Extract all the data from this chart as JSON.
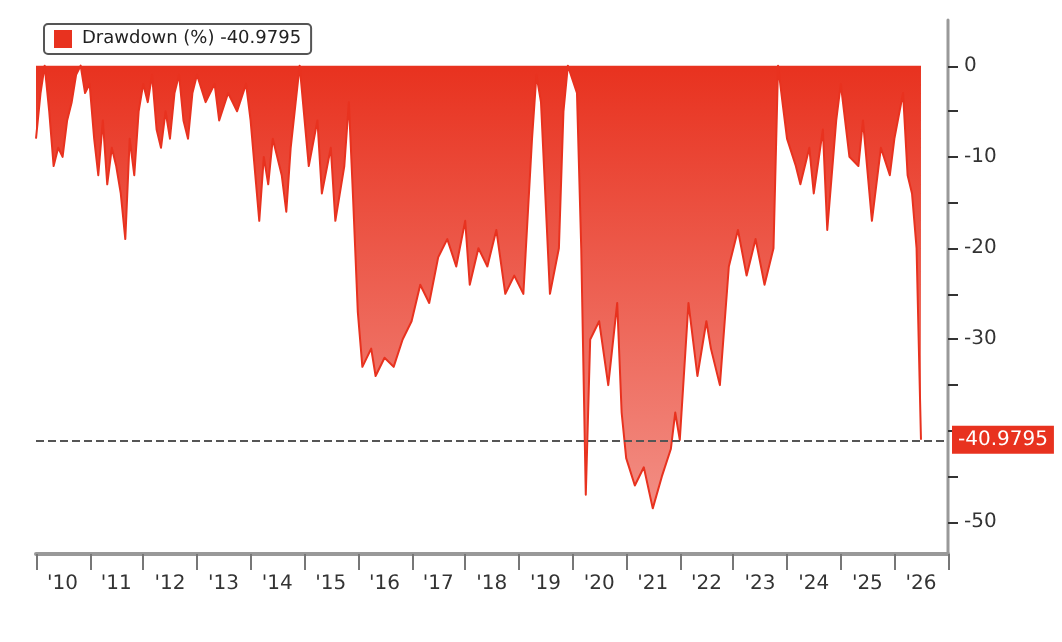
{
  "chart_data": {
    "type": "area",
    "x": [
      "2010-01",
      "2010-02",
      "2010-03",
      "2010-04",
      "2010-05",
      "2010-06",
      "2010-07",
      "2010-08",
      "2010-09",
      "2010-10",
      "2010-11",
      "2010-12",
      "2011-01",
      "2011-02",
      "2011-03",
      "2011-04",
      "2011-05",
      "2011-06",
      "2011-07",
      "2011-08",
      "2011-09",
      "2011-10",
      "2011-11",
      "2011-12",
      "2012-01",
      "2012-02",
      "2012-03",
      "2012-04",
      "2012-05",
      "2012-06",
      "2012-07",
      "2012-08",
      "2012-09",
      "2012-10",
      "2012-11",
      "2012-12",
      "2013-01",
      "2013-03",
      "2013-05",
      "2013-06",
      "2013-08",
      "2013-10",
      "2013-12",
      "2014-01",
      "2014-03",
      "2014-04",
      "2014-05",
      "2014-06",
      "2014-08",
      "2014-09",
      "2014-10",
      "2014-12",
      "2015-02",
      "2015-04",
      "2015-05",
      "2015-07",
      "2015-08",
      "2015-10",
      "2015-11",
      "2015-12",
      "2016-01",
      "2016-02",
      "2016-04",
      "2016-05",
      "2016-07",
      "2016-09",
      "2016-11",
      "2017-01",
      "2017-03",
      "2017-05",
      "2017-07",
      "2017-09",
      "2017-11",
      "2018-01",
      "2018-02",
      "2018-04",
      "2018-06",
      "2018-08",
      "2018-10",
      "2018-12",
      "2019-02",
      "2019-04",
      "2019-05",
      "2019-06",
      "2019-08",
      "2019-10",
      "2019-11",
      "2019-12",
      "2020-02",
      "2020-03",
      "2020-04",
      "2020-05",
      "2020-07",
      "2020-09",
      "2020-11",
      "2020-12",
      "2021-01",
      "2021-03",
      "2021-05",
      "2021-07",
      "2021-09",
      "2021-11",
      "2021-12",
      "2022-01",
      "2022-03",
      "2022-05",
      "2022-07",
      "2022-08",
      "2022-10",
      "2022-12",
      "2023-02",
      "2023-04",
      "2023-06",
      "2023-08",
      "2023-10",
      "2023-11",
      "2023-12",
      "2024-01",
      "2024-03",
      "2024-04",
      "2024-06",
      "2024-07",
      "2024-09",
      "2024-10",
      "2024-12",
      "2025-01",
      "2025-03",
      "2025-05",
      "2025-06",
      "2025-08",
      "2025-10",
      "2025-12",
      "2026-01",
      "2026-03",
      "2026-04",
      "2026-05",
      "2026-06",
      "2026-07"
    ],
    "series": [
      {
        "name": "Drawdown (%) -40.9795",
        "color": "#e8321f",
        "values": [
          -8,
          -3,
          0,
          -5,
          -11,
          -9,
          -10,
          -6,
          -4,
          -1,
          0,
          -3,
          -2,
          -8,
          -12,
          -6,
          -13,
          -9,
          -11,
          -14,
          -19,
          -8,
          -12,
          -5,
          -2,
          -4,
          -1,
          -7,
          -9,
          -5,
          -8,
          -3,
          -1,
          -6,
          -8,
          -3,
          -1,
          -4,
          -2,
          -6,
          -3,
          -5,
          -2,
          -6,
          -17,
          -10,
          -13,
          -8,
          -12,
          -16,
          -9,
          0,
          -11,
          -6,
          -14,
          -9,
          -17,
          -11,
          -4,
          -15,
          -27,
          -33,
          -31,
          -34,
          -32,
          -33,
          -30,
          -28,
          -24,
          -26,
          -21,
          -19,
          -22,
          -17,
          -24,
          -20,
          -22,
          -18,
          -25,
          -23,
          -25,
          -8,
          -1,
          -4,
          -25,
          -20,
          -5,
          0,
          -3,
          -20,
          -47,
          -30,
          -28,
          -35,
          -26,
          -38,
          -43,
          -46,
          -44,
          -48.5,
          -45,
          -42,
          -38,
          -41,
          -26,
          -34,
          -28,
          -31,
          -35,
          -22,
          -18,
          -23,
          -19,
          -24,
          -20,
          0,
          -4,
          -8,
          -11,
          -13,
          -9,
          -14,
          -7,
          -18,
          -6,
          -2,
          -10,
          -11,
          -6,
          -17,
          -9,
          -12,
          -8,
          -3,
          -12,
          -14,
          -20,
          -40.9795
        ]
      }
    ],
    "xlim": [
      "2010-01",
      "2027-01"
    ],
    "xticks": [
      {
        "value": "2010-01",
        "label": null
      },
      {
        "value": "2010-07",
        "label": "'10"
      },
      {
        "value": "2011-01",
        "label": null
      },
      {
        "value": "2011-07",
        "label": "'11"
      },
      {
        "value": "2012-01",
        "label": null
      },
      {
        "value": "2012-07",
        "label": "'12"
      },
      {
        "value": "2013-01",
        "label": null
      },
      {
        "value": "2013-07",
        "label": "'13"
      },
      {
        "value": "2014-01",
        "label": null
      },
      {
        "value": "2014-07",
        "label": "'14"
      },
      {
        "value": "2015-01",
        "label": null
      },
      {
        "value": "2015-07",
        "label": "'15"
      },
      {
        "value": "2016-01",
        "label": null
      },
      {
        "value": "2016-07",
        "label": "'16"
      },
      {
        "value": "2017-01",
        "label": null
      },
      {
        "value": "2017-07",
        "label": "'17"
      },
      {
        "value": "2018-01",
        "label": null
      },
      {
        "value": "2018-07",
        "label": "'18"
      },
      {
        "value": "2019-01",
        "label": null
      },
      {
        "value": "2019-07",
        "label": "'19"
      },
      {
        "value": "2020-01",
        "label": null
      },
      {
        "value": "2020-07",
        "label": "'20"
      },
      {
        "value": "2021-01",
        "label": null
      },
      {
        "value": "2021-07",
        "label": "'21"
      },
      {
        "value": "2022-01",
        "label": null
      },
      {
        "value": "2022-07",
        "label": "'22"
      },
      {
        "value": "2023-01",
        "label": null
      },
      {
        "value": "2023-07",
        "label": "'23"
      },
      {
        "value": "2024-01",
        "label": null
      },
      {
        "value": "2024-07",
        "label": "'24"
      },
      {
        "value": "2025-01",
        "label": null
      },
      {
        "value": "2025-07",
        "label": "'25"
      },
      {
        "value": "2026-01",
        "label": null
      },
      {
        "value": "2026-07",
        "label": "'26"
      },
      {
        "value": "2027-01",
        "label": null
      }
    ],
    "ylim": [
      -53.5,
      5
    ],
    "yticks": [
      0,
      {
        "value": -5,
        "label": null
      },
      -10,
      {
        "value": -15,
        "label": null
      },
      -20,
      {
        "value": -25,
        "label": null
      },
      -30,
      {
        "value": -35,
        "label": null
      },
      {
        "value": -40,
        "label": null
      },
      {
        "value": -45,
        "label": null
      },
      -50
    ],
    "ref_lines": [
      {
        "axis": "y",
        "value": -40.9795,
        "label": "-40.9795",
        "color": "#555555",
        "line_style": "dashed"
      }
    ],
    "legend": "top left",
    "grid": false
  }
}
